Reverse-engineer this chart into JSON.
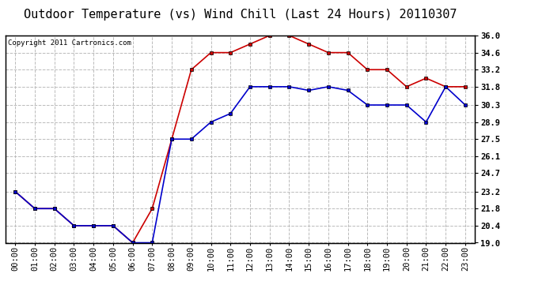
{
  "title": "Outdoor Temperature (vs) Wind Chill (Last 24 Hours) 20110307",
  "copyright": "Copyright 2011 Cartronics.com",
  "x_labels": [
    "00:00",
    "01:00",
    "02:00",
    "03:00",
    "04:00",
    "05:00",
    "06:00",
    "07:00",
    "08:00",
    "09:00",
    "10:00",
    "11:00",
    "12:00",
    "13:00",
    "14:00",
    "15:00",
    "16:00",
    "17:00",
    "18:00",
    "19:00",
    "20:00",
    "21:00",
    "22:00",
    "23:00"
  ],
  "temp_red": [
    23.2,
    21.8,
    21.8,
    20.4,
    20.4,
    20.4,
    19.0,
    21.8,
    27.5,
    33.2,
    34.6,
    34.6,
    35.3,
    36.0,
    36.0,
    35.3,
    34.6,
    34.6,
    33.2,
    33.2,
    31.8,
    32.5,
    31.8,
    31.8
  ],
  "wind_blue": [
    23.2,
    21.8,
    21.8,
    20.4,
    20.4,
    20.4,
    19.0,
    19.0,
    27.5,
    27.5,
    28.9,
    29.6,
    31.8,
    31.8,
    31.8,
    31.5,
    31.8,
    31.5,
    30.3,
    30.3,
    30.3,
    28.9,
    31.8,
    30.3
  ],
  "ylim": [
    19.0,
    36.0
  ],
  "yticks": [
    19.0,
    20.4,
    21.8,
    23.2,
    24.7,
    26.1,
    27.5,
    28.9,
    30.3,
    31.8,
    33.2,
    34.6,
    36.0
  ],
  "red_color": "#cc0000",
  "blue_color": "#0000cc",
  "bg_color": "#ffffff",
  "plot_bg_color": "#ffffff",
  "grid_color": "#bbbbbb",
  "title_fontsize": 11,
  "tick_fontsize": 7.5,
  "copyright_fontsize": 6.5
}
